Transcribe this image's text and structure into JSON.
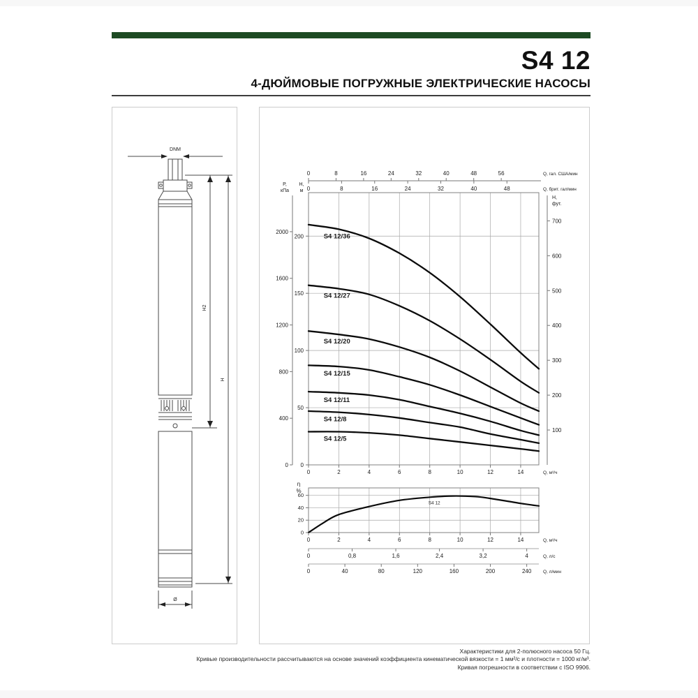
{
  "header": {
    "title": "S4 12",
    "subtitle": "4-ДЮЙМОВЫЕ ПОГРУЖНЫЕ ЭЛЕКТРИЧЕСКИЕ НАСОСЫ"
  },
  "colors": {
    "accent_bar": "#1d4a23",
    "curve": "#0b0b0b",
    "grid": "#a8a8a8",
    "axis": "#777777",
    "panel_border": "#cccccc"
  },
  "drawing": {
    "dim_dnm": "DNM",
    "dim_h2": "H2",
    "dim_h": "H",
    "dim_diameter": "Ø"
  },
  "chart_data": [
    {
      "type": "line",
      "name": "head-flow-curves",
      "title": "",
      "xlim": [
        0,
        15.2
      ],
      "ylim": [
        0,
        238
      ],
      "grid": true,
      "x_axis_bottom": {
        "label": "Q, м³/ч",
        "ticks": [
          0,
          2,
          4,
          6,
          8,
          10,
          12,
          14
        ]
      },
      "x_axes_top": [
        {
          "label": "Q, гал. США/мин",
          "units_per_m3h": 4.403,
          "ticks": [
            0,
            8,
            16,
            24,
            32,
            40,
            48,
            56
          ]
        },
        {
          "label": "Q, брит. гал/мин",
          "units_per_m3h": 3.666,
          "ticks": [
            0,
            8,
            16,
            24,
            32,
            40,
            48
          ]
        }
      ],
      "y_axis_pressure": {
        "label": [
          "P,",
          "кПа"
        ],
        "units_per_m": 9.81,
        "ticks": [
          0,
          400,
          800,
          1200,
          1600,
          2000
        ]
      },
      "y_axis_head": {
        "label": [
          "H,",
          "м"
        ],
        "ticks": [
          0,
          50,
          100,
          150,
          200
        ]
      },
      "y_axis_feet": {
        "label": [
          "H,",
          "фут."
        ],
        "units_per_m": 3.281,
        "ticks": [
          100,
          200,
          300,
          400,
          500,
          600,
          700
        ]
      },
      "series": [
        {
          "name": "S4 12/36",
          "points": [
            [
              0,
              210
            ],
            [
              2,
              206
            ],
            [
              4,
              198
            ],
            [
              6,
              185
            ],
            [
              8,
              168
            ],
            [
              10,
              147
            ],
            [
              12,
              123
            ],
            [
              14,
              98
            ],
            [
              15.2,
              84
            ]
          ]
        },
        {
          "name": "S4 12/27",
          "points": [
            [
              0,
              157
            ],
            [
              2,
              154
            ],
            [
              4,
              149
            ],
            [
              6,
              139
            ],
            [
              8,
              126
            ],
            [
              10,
              110
            ],
            [
              12,
              92
            ],
            [
              14,
              73
            ],
            [
              15.2,
              63
            ]
          ]
        },
        {
          "name": "S4 12/20",
          "points": [
            [
              0,
              117
            ],
            [
              2,
              114
            ],
            [
              4,
              110
            ],
            [
              6,
              103
            ],
            [
              8,
              94
            ],
            [
              10,
              82
            ],
            [
              12,
              68
            ],
            [
              14,
              54
            ],
            [
              15.2,
              47
            ]
          ]
        },
        {
          "name": "S4 12/15",
          "points": [
            [
              0,
              87
            ],
            [
              2,
              86
            ],
            [
              4,
              83
            ],
            [
              6,
              77
            ],
            [
              8,
              70
            ],
            [
              10,
              61
            ],
            [
              12,
              51
            ],
            [
              14,
              41
            ],
            [
              15.2,
              35
            ]
          ]
        },
        {
          "name": "S4 12/11",
          "points": [
            [
              0,
              64
            ],
            [
              2,
              63
            ],
            [
              4,
              61
            ],
            [
              6,
              57
            ],
            [
              8,
              51
            ],
            [
              10,
              45
            ],
            [
              12,
              38
            ],
            [
              14,
              30
            ],
            [
              15.2,
              26
            ]
          ]
        },
        {
          "name": "S4 12/8",
          "points": [
            [
              0,
              47
            ],
            [
              2,
              46
            ],
            [
              4,
              44
            ],
            [
              6,
              41
            ],
            [
              8,
              37
            ],
            [
              10,
              33
            ],
            [
              12,
              27
            ],
            [
              14,
              22
            ],
            [
              15.2,
              19
            ]
          ]
        },
        {
          "name": "S4 12/5",
          "points": [
            [
              0,
              29
            ],
            [
              2,
              29
            ],
            [
              4,
              28
            ],
            [
              6,
              26
            ],
            [
              8,
              23
            ],
            [
              10,
              20
            ],
            [
              12,
              17
            ],
            [
              14,
              14
            ],
            [
              15.2,
              12
            ]
          ]
        }
      ]
    },
    {
      "type": "line",
      "name": "efficiency-curve",
      "xlim": [
        0,
        15.2
      ],
      "ylim": [
        0,
        72
      ],
      "grid": true,
      "y_axis": {
        "label": [
          "η",
          "%"
        ],
        "ticks": [
          0,
          20,
          40,
          60
        ]
      },
      "x_axes_bottom": [
        {
          "label": "Q, м³/ч",
          "m3h_per_unit": 1,
          "ticks": [
            {
              "v": 0,
              "t": "0"
            },
            {
              "v": 2,
              "t": "2"
            },
            {
              "v": 4,
              "t": "4"
            },
            {
              "v": 6,
              "t": "6"
            },
            {
              "v": 8,
              "t": "8"
            },
            {
              "v": 10,
              "t": "10"
            },
            {
              "v": 12,
              "t": "12"
            },
            {
              "v": 14,
              "t": "14"
            }
          ]
        },
        {
          "label": "Q, л/с",
          "m3h_per_unit": 3.6,
          "ticks": [
            {
              "v": 0,
              "t": "0"
            },
            {
              "v": 0.8,
              "t": "0,8"
            },
            {
              "v": 1.6,
              "t": "1,6"
            },
            {
              "v": 2.4,
              "t": "2,4"
            },
            {
              "v": 3.2,
              "t": "3,2"
            },
            {
              "v": 4,
              "t": "4"
            }
          ]
        },
        {
          "label": "Q, л/мин",
          "m3h_per_unit": 0.06,
          "ticks": [
            {
              "v": 0,
              "t": "0"
            },
            {
              "v": 40,
              "t": "40"
            },
            {
              "v": 80,
              "t": "80"
            },
            {
              "v": 120,
              "t": "120"
            },
            {
              "v": 160,
              "t": "160"
            },
            {
              "v": 200,
              "t": "200"
            },
            {
              "v": 240,
              "t": "240"
            }
          ]
        }
      ],
      "series": [
        {
          "name": "S4 12",
          "points": [
            [
              0,
              0
            ],
            [
              1,
              16
            ],
            [
              2,
              29
            ],
            [
              4,
              42
            ],
            [
              6,
              52
            ],
            [
              8,
              57
            ],
            [
              9.5,
              59
            ],
            [
              11,
              58
            ],
            [
              12,
              55
            ],
            [
              14,
              47
            ],
            [
              15.2,
              43
            ]
          ]
        }
      ]
    }
  ],
  "footer": {
    "lines": [
      "Характеристики для 2-полюсного насоса 50 Гц.",
      "Кривые производительности рассчитываются на основе значений коэффициента кинематической вязкости = 1 мм²/с и плотности = 1000 кг/м³.",
      "Кривая погрешности в соответствии с ISO 9906."
    ]
  }
}
